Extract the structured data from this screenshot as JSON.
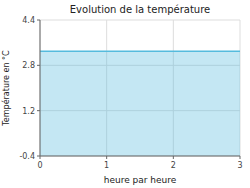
{
  "chart_data": {
    "type": "area",
    "title": "Evolution de la température",
    "x_label": "heure par heure",
    "y_label": "Température en °C",
    "x": [
      0,
      3
    ],
    "series": [
      {
        "values": [
          3.3,
          3.3
        ],
        "color": "#55bbdd"
      }
    ],
    "xlim": [
      0,
      3
    ],
    "ylim": [
      -0.4,
      4.4
    ],
    "xticks": [
      0,
      1,
      2,
      3
    ],
    "yticks": [
      -0.4,
      1.2,
      2.8,
      4.4
    ],
    "grid": true
  }
}
